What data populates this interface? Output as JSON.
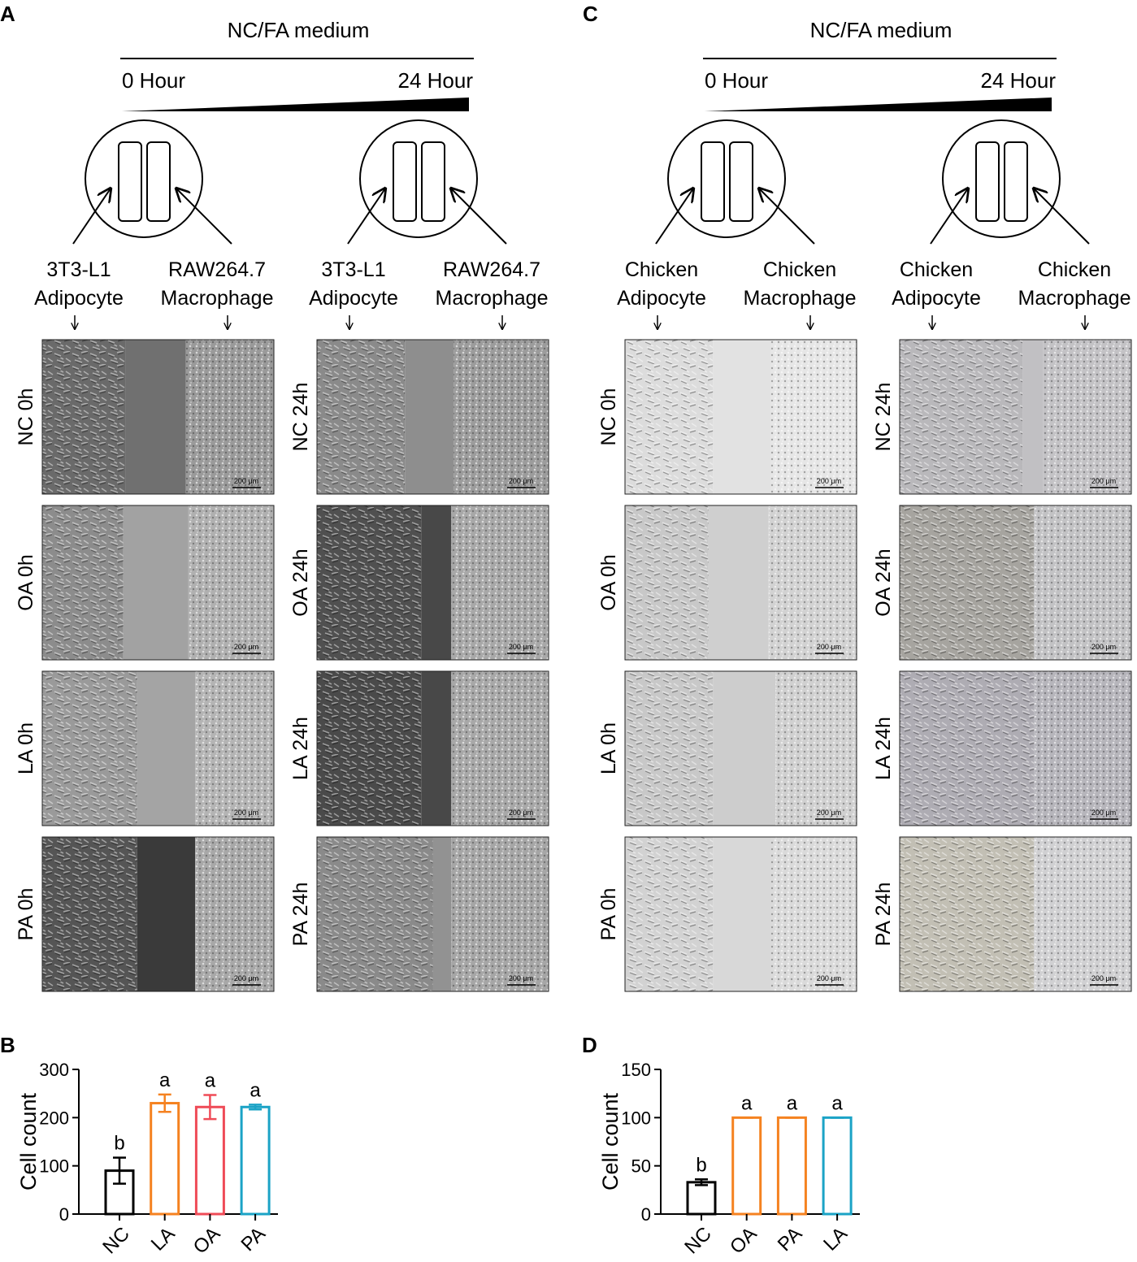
{
  "diagrams": [
    {
      "letter": "A",
      "medium": "NC/FA medium",
      "start": "0 Hour",
      "end": "24 Hour",
      "groups": [
        {
          "left": [
            "3T3-L1",
            "Adipocyte"
          ],
          "right": [
            "RAW264.7",
            "Macrophage"
          ],
          "rows": [
            "NC 0h",
            "OA 0h",
            "LA 0h",
            "PA 0h"
          ]
        },
        {
          "left": [
            "3T3-L1",
            "Adipocyte"
          ],
          "right": [
            "RAW264.7",
            "Macrophage"
          ],
          "rows": [
            "NC 24h",
            "OA 24h",
            "LA 24h",
            "PA 24h"
          ]
        }
      ]
    },
    {
      "letter": "C",
      "medium": "NC/FA medium",
      "start": "0 Hour",
      "end": "24 Hour",
      "groups": [
        {
          "left": [
            "Chicken",
            "Adipocyte"
          ],
          "right": [
            "Chicken",
            "Macrophage"
          ],
          "rows": [
            "NC 0h",
            "OA 0h",
            "LA 0h",
            "PA 0h"
          ]
        },
        {
          "left": [
            "Chicken",
            "Adipocyte"
          ],
          "right": [
            "Chicken",
            "Macrophage"
          ],
          "rows": [
            "NC 24h",
            "OA 24h",
            "LA 24h",
            "PA 24h"
          ]
        }
      ]
    }
  ],
  "scale_bar": "200 μm",
  "chart_data": [
    {
      "type": "bar",
      "label": "B",
      "ylabel": "Cell count",
      "categories": [
        "NC",
        "LA",
        "OA",
        "PA"
      ],
      "values": [
        90,
        230,
        222,
        222
      ],
      "errors": [
        27,
        18,
        25,
        5
      ],
      "annotations": [
        "b",
        "a",
        "a",
        "a"
      ],
      "colors": [
        "#000000",
        "#f58220",
        "#ef4b57",
        "#1ba3c6"
      ],
      "ylim": [
        0,
        300
      ],
      "yticks": [
        0,
        100,
        200,
        300
      ]
    },
    {
      "type": "bar",
      "label": "D",
      "ylabel": "Cell count",
      "categories": [
        "NC",
        "OA",
        "PA",
        "LA"
      ],
      "values": [
        33,
        100,
        100,
        100
      ],
      "errors": [
        3,
        0,
        0,
        0
      ],
      "annotations": [
        "b",
        "a",
        "a",
        "a"
      ],
      "colors": [
        "#000000",
        "#f58220",
        "#f58220",
        "#1ba3c6"
      ],
      "ylim": [
        0,
        150
      ],
      "yticks": [
        0,
        50,
        100,
        150
      ]
    }
  ]
}
